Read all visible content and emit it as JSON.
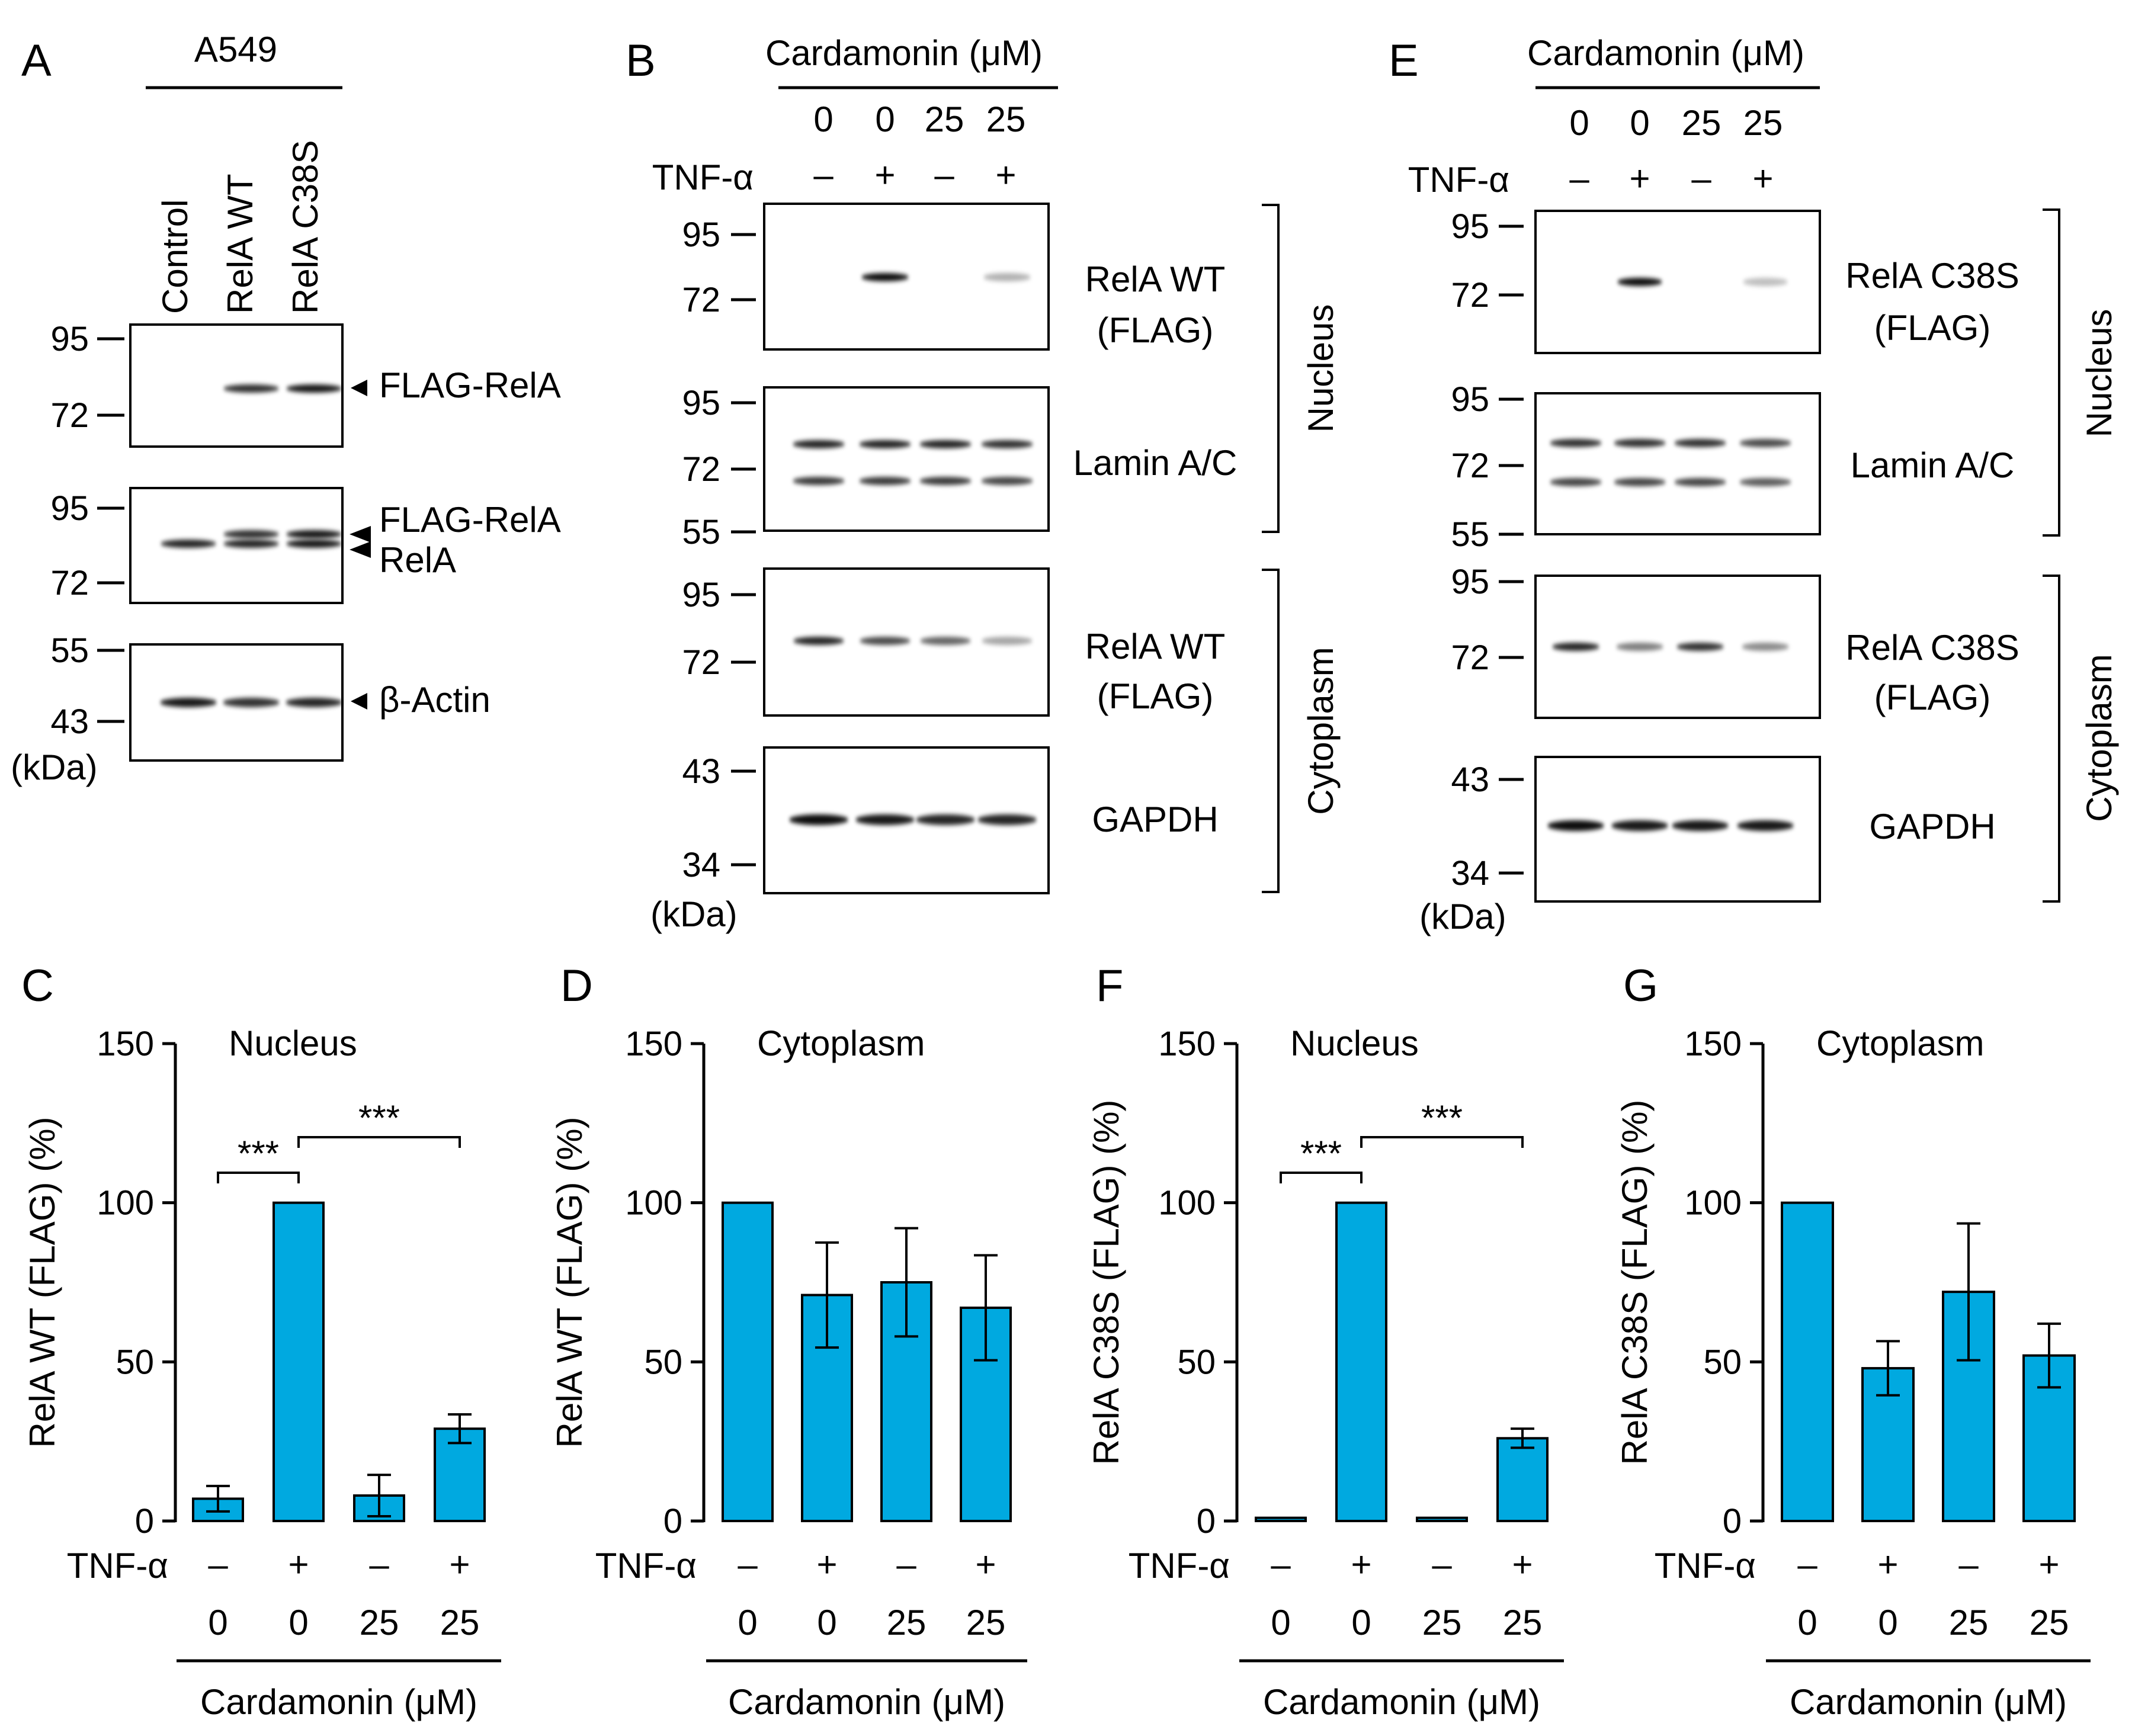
{
  "colors": {
    "bar": "#00a9e0",
    "band": "#000000",
    "background": "#ffffff"
  },
  "panel_letters": [
    "A",
    "B",
    "C",
    "D",
    "E",
    "F",
    "G"
  ],
  "blot_a": {
    "cell_line": "A549",
    "lanes": [
      "Control",
      "RelA WT",
      "RelA C38S"
    ],
    "kda_unit": "(kDa)",
    "blots": [
      {
        "markers": [
          "95",
          "72"
        ],
        "labels": [
          "FLAG-RelA"
        ],
        "band_intensity": [
          0,
          0.8,
          0.9
        ]
      },
      {
        "markers": [
          "95",
          "72"
        ],
        "labels": [
          "FLAG-RelA",
          "RelA"
        ],
        "band_intensity": [
          0.8,
          0.9,
          0.9
        ]
      },
      {
        "markers": [
          "55",
          "43"
        ],
        "labels": [
          "β-Actin"
        ],
        "band_intensity": [
          0.9,
          0.8,
          0.85
        ]
      }
    ]
  },
  "blot_b": {
    "treatment_title": "Cardamonin (μM)",
    "doses": [
      "0",
      "0",
      "25",
      "25"
    ],
    "tnf_label": "TNF-α",
    "tnf": [
      "–",
      "+",
      "–",
      "+"
    ],
    "kda_unit": "(kDa)",
    "blots": [
      {
        "markers": [
          "95",
          "72"
        ],
        "label_lines": [
          "RelA WT",
          "(FLAG)"
        ],
        "band_intensity": [
          0,
          0.95,
          0,
          0.3
        ]
      },
      {
        "markers": [
          "95",
          "72",
          "55"
        ],
        "label_lines": [
          "Lamin A/C"
        ],
        "band_intensity": [
          0.85,
          0.85,
          0.85,
          0.8
        ]
      },
      {
        "markers": [
          "95",
          "72"
        ],
        "label_lines": [
          "RelA WT",
          "(FLAG)"
        ],
        "band_intensity": [
          0.85,
          0.7,
          0.6,
          0.35
        ]
      },
      {
        "markers": [
          "43",
          "34"
        ],
        "label_lines": [
          "GAPDH"
        ],
        "band_intensity": [
          0.95,
          0.9,
          0.85,
          0.85
        ]
      }
    ],
    "fractions": [
      "Nucleus",
      "Cytoplasm"
    ]
  },
  "blot_e": {
    "treatment_title": "Cardamonin (μM)",
    "doses": [
      "0",
      "0",
      "25",
      "25"
    ],
    "tnf_label": "TNF-α",
    "tnf": [
      "–",
      "+",
      "–",
      "+"
    ],
    "kda_unit": "(kDa)",
    "blots": [
      {
        "markers": [
          "95",
          "72"
        ],
        "label_lines": [
          "RelA C38S",
          "(FLAG)"
        ],
        "band_intensity": [
          0,
          0.95,
          0,
          0.25
        ]
      },
      {
        "markers": [
          "95",
          "72",
          "55"
        ],
        "label_lines": [
          "Lamin A/C"
        ],
        "band_intensity": [
          0.8,
          0.8,
          0.8,
          0.7
        ]
      },
      {
        "markers": [
          "95",
          "72"
        ],
        "label_lines": [
          "RelA C38S",
          "(FLAG)"
        ],
        "band_intensity": [
          0.85,
          0.5,
          0.8,
          0.45
        ]
      },
      {
        "markers": [
          "43",
          "34"
        ],
        "label_lines": [
          "GAPDH"
        ],
        "band_intensity": [
          0.95,
          0.9,
          0.9,
          0.9
        ]
      }
    ],
    "fractions": [
      "Nucleus",
      "Cytoplasm"
    ]
  },
  "chart_data": [
    {
      "panel": "C",
      "type": "bar",
      "title": "Nucleus",
      "ylabel": "RelA WT (FLAG) (%)",
      "ylim": [
        0,
        150
      ],
      "yticks": [
        "0",
        "50",
        "100",
        "150"
      ],
      "tnf_label": "TNF-α",
      "tnf": [
        "–",
        "+",
        "–",
        "+"
      ],
      "doses": [
        "0",
        "0",
        "25",
        "25"
      ],
      "xlabel": "Cardamonin (μM)",
      "values": [
        7,
        100,
        8,
        29
      ],
      "errors": [
        4,
        0,
        6.5,
        4.5
      ],
      "significance": [
        {
          "from": 0,
          "to": 1,
          "label": "***"
        },
        {
          "from": 1,
          "to": 3,
          "label": "***"
        }
      ]
    },
    {
      "panel": "D",
      "type": "bar",
      "title": "Cytoplasm",
      "ylabel": "RelA WT (FLAG) (%)",
      "ylim": [
        0,
        150
      ],
      "yticks": [
        "0",
        "50",
        "100",
        "150"
      ],
      "tnf_label": "TNF-α",
      "tnf": [
        "–",
        "+",
        "–",
        "+"
      ],
      "doses": [
        "0",
        "0",
        "25",
        "25"
      ],
      "xlabel": "Cardamonin (μM)",
      "values": [
        100,
        71,
        75,
        67
      ],
      "errors": [
        0,
        16.5,
        17,
        16.5
      ],
      "significance": []
    },
    {
      "panel": "F",
      "type": "bar",
      "title": "Nucleus",
      "ylabel": "RelA C38S (FLAG) (%)",
      "ylim": [
        0,
        150
      ],
      "yticks": [
        "0",
        "50",
        "100",
        "150"
      ],
      "tnf_label": "TNF-α",
      "tnf": [
        "–",
        "+",
        "–",
        "+"
      ],
      "doses": [
        "0",
        "0",
        "25",
        "25"
      ],
      "xlabel": "Cardamonin (μM)",
      "values": [
        1,
        100,
        1,
        26
      ],
      "errors": [
        0,
        0,
        0,
        3
      ],
      "significance": [
        {
          "from": 0,
          "to": 1,
          "label": "***"
        },
        {
          "from": 1,
          "to": 3,
          "label": "***"
        }
      ]
    },
    {
      "panel": "G",
      "type": "bar",
      "title": "Cytoplasm",
      "ylabel": "RelA C38S (FLAG) (%)",
      "ylim": [
        0,
        150
      ],
      "yticks": [
        "0",
        "50",
        "100",
        "150"
      ],
      "tnf_label": "TNF-α",
      "tnf": [
        "–",
        "+",
        "–",
        "+"
      ],
      "doses": [
        "0",
        "0",
        "25",
        "25"
      ],
      "xlabel": "Cardamonin (μM)",
      "values": [
        100,
        48,
        72,
        52
      ],
      "errors": [
        0,
        8.5,
        21.5,
        10
      ],
      "significance": []
    }
  ]
}
